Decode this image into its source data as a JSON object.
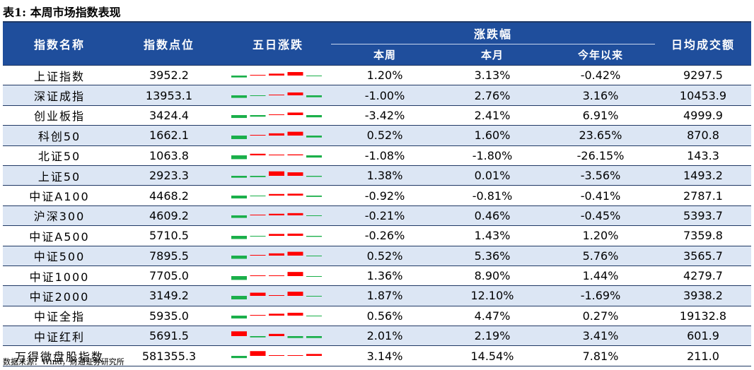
{
  "title": "表1: 本周市场指数表现",
  "source": "数据来源：Wind，财通证券研究所",
  "colors": {
    "up": "#ff0000",
    "down": "#1aaf4a",
    "header": "#1f4e9c",
    "alt": "#dce6f4"
  },
  "headers": {
    "name": "指数名称",
    "level": "指数点位",
    "five_day": "五日涨跌",
    "change": "涨跌幅",
    "week": "本周",
    "month": "本月",
    "ytd": "今年以来",
    "volume": "日均成交额"
  },
  "rows": [
    {
      "name": "上证指数",
      "level": "3952.2",
      "week": "1.20%",
      "month": "3.13%",
      "ytd": "-0.42%",
      "volume": "9297.5",
      "spark": [
        -0.3,
        0.05,
        0.3,
        0.55,
        -0.05
      ]
    },
    {
      "name": "深证成指",
      "level": "13953.1",
      "week": "-1.00%",
      "month": "2.76%",
      "ytd": "3.16%",
      "volume": "10453.9",
      "spark": [
        -0.4,
        -0.05,
        0.1,
        0.45,
        -0.3
      ]
    },
    {
      "name": "创业板指",
      "level": "3424.4",
      "week": "-3.42%",
      "month": "2.41%",
      "ytd": "6.91%",
      "volume": "4999.9",
      "spark": [
        -0.45,
        -0.25,
        0.1,
        0.4,
        -0.35
      ]
    },
    {
      "name": "科创50",
      "level": "1662.1",
      "week": "0.52%",
      "month": "1.60%",
      "ytd": "23.65%",
      "volume": "870.8",
      "spark": [
        -0.55,
        0.05,
        0.35,
        0.6,
        -0.3
      ]
    },
    {
      "name": "北证50",
      "level": "1063.8",
      "week": "-1.08%",
      "month": "-1.80%",
      "ytd": "-26.15%",
      "volume": "143.3",
      "spark": [
        -0.6,
        0.25,
        0.12,
        0.15,
        -0.35
      ]
    },
    {
      "name": "上证50",
      "level": "2923.3",
      "week": "1.38%",
      "month": "0.01%",
      "ytd": "-3.56%",
      "volume": "1493.2",
      "spark": [
        -0.3,
        -0.2,
        0.7,
        0.55,
        -0.15
      ]
    },
    {
      "name": "中证A100",
      "level": "4468.2",
      "week": "-0.92%",
      "month": "-0.81%",
      "ytd": "-0.41%",
      "volume": "2787.1",
      "spark": [
        -0.45,
        -0.05,
        0.25,
        0.3,
        -0.2
      ]
    },
    {
      "name": "沪深300",
      "level": "4609.2",
      "week": "-0.21%",
      "month": "0.46%",
      "ytd": "-0.45%",
      "volume": "5393.7",
      "spark": [
        -0.4,
        0.05,
        0.25,
        0.35,
        -0.05
      ]
    },
    {
      "name": "中证A500",
      "level": "5710.5",
      "week": "-0.26%",
      "month": "1.43%",
      "ytd": "1.20%",
      "volume": "7359.8",
      "spark": [
        -0.5,
        -0.05,
        0.3,
        0.35,
        -0.15
      ]
    },
    {
      "name": "中证500",
      "level": "7895.5",
      "week": "0.52%",
      "month": "5.36%",
      "ytd": "5.76%",
      "volume": "3565.7",
      "spark": [
        -0.5,
        0.05,
        0.35,
        0.6,
        -0.1
      ]
    },
    {
      "name": "中证1000",
      "level": "7705.0",
      "week": "1.36%",
      "month": "8.90%",
      "ytd": "1.44%",
      "volume": "4279.7",
      "spark": [
        -0.6,
        0.05,
        0.1,
        0.65,
        -0.05
      ]
    },
    {
      "name": "中证2000",
      "level": "3149.2",
      "week": "1.87%",
      "month": "12.10%",
      "ytd": "-1.69%",
      "volume": "3938.2",
      "spark": [
        -0.55,
        0.5,
        0.1,
        0.65,
        -0.05
      ]
    },
    {
      "name": "中证全指",
      "level": "5935.0",
      "week": "0.56%",
      "month": "4.47%",
      "ytd": "0.27%",
      "volume": "19132.8",
      "spark": [
        -0.45,
        0.05,
        0.3,
        0.45,
        -0.1
      ]
    },
    {
      "name": "中证红利",
      "level": "5691.5",
      "week": "2.01%",
      "month": "2.19%",
      "ytd": "3.41%",
      "volume": "601.9",
      "spark": [
        0.75,
        -0.2,
        0.35,
        -0.3,
        -0.3
      ]
    },
    {
      "name": "万得微盘股指数",
      "level": "581355.3",
      "week": "3.14%",
      "month": "14.54%",
      "ytd": "7.81%",
      "volume": "211.0",
      "spark": [
        -0.35,
        0.75,
        0.05,
        0.08,
        0.3
      ]
    }
  ]
}
